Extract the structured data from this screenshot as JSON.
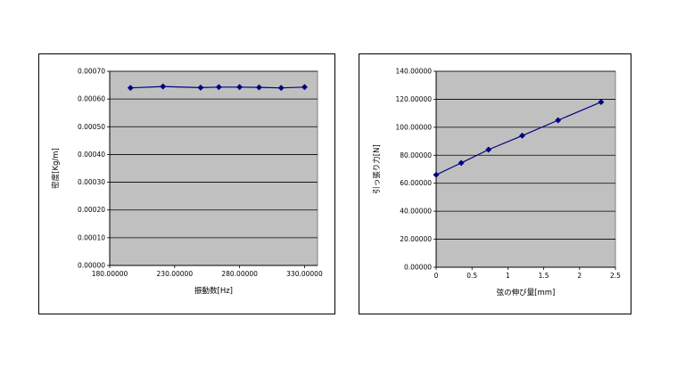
{
  "chart_data": [
    {
      "type": "line",
      "xlabel": "振動数[Hz]",
      "ylabel": "密度[Kg/m]",
      "xlim": [
        180,
        340
      ],
      "ylim": [
        0,
        0.0007
      ],
      "x_ticks": [
        180,
        230,
        280,
        330
      ],
      "x_tick_labels": [
        "180.00000",
        "230.00000",
        "280.00000",
        "330.00000"
      ],
      "y_ticks": [
        0,
        0.0001,
        0.0002,
        0.0003,
        0.0004,
        0.0005,
        0.0006,
        0.0007
      ],
      "y_tick_labels": [
        "0.00000",
        "0.00010",
        "0.00020",
        "0.00030",
        "0.00040",
        "0.00050",
        "0.00060",
        "0.00070"
      ],
      "grid": "horizontal",
      "marker": "diamond",
      "color": "#000080",
      "plot_background": "#c0c0c0",
      "series": [
        {
          "x": [
            196,
            221,
            250,
            264,
            280,
            295,
            312,
            330
          ],
          "y": [
            0.00064,
            0.000645,
            0.000641,
            0.000643,
            0.000643,
            0.000642,
            0.00064,
            0.000643
          ]
        }
      ]
    },
    {
      "type": "line",
      "xlabel": "弦の伸び量[mm]",
      "ylabel": "引っ張り力[N]",
      "xlim": [
        0,
        2.5
      ],
      "ylim": [
        0,
        140
      ],
      "x_ticks": [
        0,
        0.5,
        1,
        1.5,
        2,
        2.5
      ],
      "x_tick_labels": [
        "0",
        "0.5",
        "1",
        "1.5",
        "2",
        "2.5"
      ],
      "y_ticks": [
        0,
        20,
        40,
        60,
        80,
        100,
        120,
        140
      ],
      "y_tick_labels": [
        "0.00000",
        "20.00000",
        "40.00000",
        "60.00000",
        "80.00000",
        "100.00000",
        "120.00000",
        "140.00000"
      ],
      "grid": "horizontal",
      "marker": "diamond",
      "color": "#000080",
      "plot_background": "#c0c0c0",
      "series": [
        {
          "x": [
            0,
            0.35,
            0.73,
            1.2,
            1.7,
            2.3
          ],
          "y": [
            66,
            74.5,
            84,
            94,
            105,
            118
          ]
        }
      ]
    }
  ]
}
